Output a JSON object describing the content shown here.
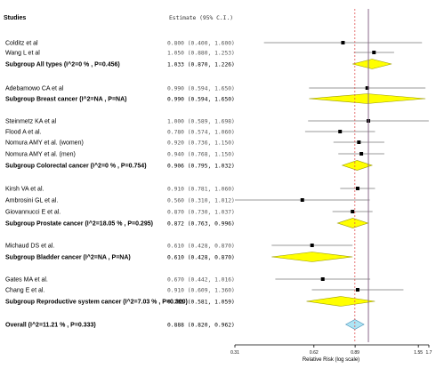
{
  "chart_data": {
    "type": "forest",
    "header": {
      "studies": "Studies",
      "estimate": "Estimate (95% C.I.)"
    },
    "x_axis": {
      "label": "Relative Risk (log scale)",
      "scale": "log",
      "range": [
        0.31,
        1.7
      ],
      "ticks": [
        {
          "value": 0.31,
          "label": "0.31"
        },
        {
          "value": 0.62,
          "label": "0.62"
        },
        {
          "value": 0.89,
          "label": "0.89"
        },
        {
          "value": 1.55,
          "label": "1.55"
        },
        {
          "value": 1.7,
          "label": "1.7"
        }
      ]
    },
    "reference_line": 1.0,
    "overall_line": 0.888,
    "rows": [
      {
        "label": "Colditz et al",
        "estimate_text": "0.800 (0.400, 1.600)",
        "est": 0.8,
        "lo": 0.4,
        "hi": 1.6,
        "kind": "study"
      },
      {
        "label": "Wang L et al",
        "estimate_text": "1.050 (0.880, 1.253)",
        "est": 1.05,
        "lo": 0.88,
        "hi": 1.253,
        "kind": "study"
      },
      {
        "label": "Subgroup All types (I^2=0 % , P=0.456)",
        "estimate_text": "1.033 (0.870, 1.226)",
        "est": 1.033,
        "lo": 0.87,
        "hi": 1.226,
        "kind": "subgroup"
      },
      {
        "label": "Adebamowo CA et al",
        "estimate_text": "0.990 (0.594, 1.650)",
        "est": 0.99,
        "lo": 0.594,
        "hi": 1.65,
        "kind": "study"
      },
      {
        "label": "Subgroup Breast cancer (I^2=NA , P=NA)",
        "estimate_text": "0.990 (0.594, 1.650)",
        "est": 0.99,
        "lo": 0.594,
        "hi": 1.65,
        "kind": "subgroup"
      },
      {
        "label": "Steinmetz KA et al",
        "estimate_text": "1.000 (0.589, 1.698)",
        "est": 1.0,
        "lo": 0.589,
        "hi": 1.698,
        "kind": "study"
      },
      {
        "label": "Flood A et al.",
        "estimate_text": "0.780 (0.574, 1.060)",
        "est": 0.78,
        "lo": 0.574,
        "hi": 1.06,
        "kind": "study"
      },
      {
        "label": "Nomura AMY et al. (women)",
        "estimate_text": "0.920 (0.736, 1.150)",
        "est": 0.92,
        "lo": 0.736,
        "hi": 1.15,
        "kind": "study"
      },
      {
        "label": "Nomura AMY et al. (men)",
        "estimate_text": "0.940 (0.768, 1.150)",
        "est": 0.94,
        "lo": 0.768,
        "hi": 1.15,
        "kind": "study"
      },
      {
        "label": "Subgroup Colorectal cancer (I^2=0 % , P=0.754)",
        "estimate_text": "0.906 (0.795, 1.032)",
        "est": 0.906,
        "lo": 0.795,
        "hi": 1.032,
        "kind": "subgroup"
      },
      {
        "label": "Kirsh VA et al.",
        "estimate_text": "0.910 (0.781, 1.060)",
        "est": 0.91,
        "lo": 0.781,
        "hi": 1.06,
        "kind": "study"
      },
      {
        "label": "Ambrosini GL et al.",
        "estimate_text": "0.560 (0.310, 1.012)",
        "est": 0.56,
        "lo": 0.31,
        "hi": 1.012,
        "kind": "study"
      },
      {
        "label": "Giovannucci E et al.",
        "estimate_text": "0.870 (0.730, 1.037)",
        "est": 0.87,
        "lo": 0.73,
        "hi": 1.037,
        "kind": "study"
      },
      {
        "label": "Subgroup Prostate cancer (I^2=18.05 % , P=0.295)",
        "estimate_text": "0.872 (0.763, 0.996)",
        "est": 0.872,
        "lo": 0.763,
        "hi": 0.996,
        "kind": "subgroup"
      },
      {
        "label": "Michaud DS et al.",
        "estimate_text": "0.610 (0.428, 0.870)",
        "est": 0.61,
        "lo": 0.428,
        "hi": 0.87,
        "kind": "study"
      },
      {
        "label": "Subgroup Bladder cancer (I^2=NA , P=NA)",
        "estimate_text": "0.610 (0.428, 0.870)",
        "est": 0.61,
        "lo": 0.428,
        "hi": 0.87,
        "kind": "subgroup"
      },
      {
        "label": "Gates MA et al.",
        "estimate_text": "0.670 (0.442, 1.016)",
        "est": 0.67,
        "lo": 0.442,
        "hi": 1.016,
        "kind": "study"
      },
      {
        "label": "Chang E et al.",
        "estimate_text": "0.910 (0.609, 1.360)",
        "est": 0.91,
        "lo": 0.609,
        "hi": 1.36,
        "kind": "study"
      },
      {
        "label": "Subgroup Reproductive system cancer (I^2=7.03 % , P=0.300)",
        "estimate_text": "0.785 (0.581, 1.059)",
        "est": 0.785,
        "lo": 0.581,
        "hi": 1.059,
        "kind": "subgroup"
      },
      {
        "label": "Overall (I^2=11.21 % , P=0.333)",
        "estimate_text": "0.888 (0.820, 0.962)",
        "est": 0.888,
        "lo": 0.82,
        "hi": 0.962,
        "kind": "overall"
      }
    ],
    "colors": {
      "subgroup_diamond": "#ffff00",
      "subgroup_diamond_stroke": "#999900",
      "overall_diamond": "#aee4f4",
      "overall_diamond_stroke": "#4a90b8",
      "reference_line": "#8a6a8a",
      "overall_line": "#e05050",
      "ci_line": "#777777",
      "point": "#000000"
    }
  }
}
